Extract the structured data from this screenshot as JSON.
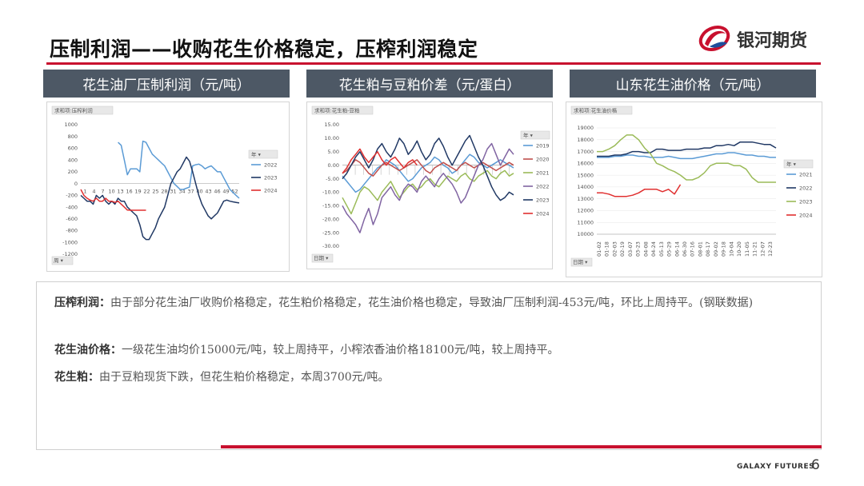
{
  "title": "压制利润——收购花生价格稳定，压榨利润稳定",
  "logo": {
    "name": "银河期货",
    "mark_color": "#c8102e"
  },
  "footer": {
    "brand": "GALAXY FUTURES",
    "page": "6"
  },
  "panels": [
    {
      "header": "花生油厂压制利润（元/吨）",
      "sheet_label": "求和项:压榨利润",
      "filter_label": "周",
      "legend_title": "年",
      "chart_data": {
        "type": "line",
        "x_ticks": [
          "1",
          "4",
          "7",
          "10",
          "13",
          "16",
          "19",
          "22",
          "25",
          "28",
          "31",
          "34",
          "37",
          "40",
          "43",
          "46",
          "49",
          "52"
        ],
        "y_ticks": [
          1000,
          800,
          600,
          400,
          200,
          0,
          -200,
          -400,
          -600,
          -800,
          -1000,
          -1200
        ],
        "ylim": [
          -1200,
          1000
        ],
        "series": [
          {
            "name": "2022",
            "color": "#5b9bd5",
            "values": [
              null,
              null,
              null,
              null,
              null,
              null,
              null,
              null,
              null,
              null,
              null,
              null,
              700,
              650,
              400,
              150,
              250,
              250,
              250,
              200,
              720,
              700,
              600,
              500,
              450,
              400,
              350,
              300,
              200,
              100,
              0,
              -50,
              -100,
              -100,
              -80,
              -60,
              300,
              320,
              330,
              300,
              250,
              280,
              300,
              250,
              200,
              200,
              100,
              0,
              -100,
              -150,
              -200,
              -250
            ]
          },
          {
            "name": "2023",
            "color": "#203864",
            "values": [
              -200,
              -250,
              -300,
              -300,
              -350,
              -200,
              -250,
              -200,
              -300,
              -350,
              -300,
              -350,
              -250,
              -300,
              -300,
              -400,
              -450,
              -500,
              -550,
              -700,
              -900,
              -950,
              -950,
              -850,
              -750,
              -600,
              -500,
              -400,
              -200,
              0,
              100,
              200,
              250,
              350,
              450,
              380,
              200,
              0,
              -200,
              -350,
              -450,
              -550,
              -600,
              -550,
              -500,
              -400,
              -300,
              -280,
              -300,
              -310,
              -320,
              -330
            ]
          },
          {
            "name": "2024",
            "color": "#e03030",
            "values": [
              -100,
              -200,
              -250,
              -280,
              -300,
              -250,
              -300,
              -300,
              -250,
              -300,
              -300,
              -320,
              -300,
              -350,
              -400,
              -450,
              -453,
              -453,
              -453,
              -453,
              -453,
              -453,
              null,
              null,
              null,
              null,
              null,
              null,
              null,
              null,
              null,
              null,
              null,
              null,
              null,
              null,
              null,
              null,
              null,
              null,
              null,
              null,
              null,
              null,
              null,
              null,
              null,
              null,
              null,
              null,
              null,
              null
            ]
          }
        ]
      }
    },
    {
      "header": "花生粕与豆粕价差（元/蛋白）",
      "sheet_label": "求和项:花生粕-豆粕",
      "filter_label": "日期",
      "legend_title": "年",
      "chart_data": {
        "type": "line",
        "y_ticks": [
          "15.00",
          "10.00",
          "5.00",
          "0.00",
          "-5.00",
          "-10.00",
          "-15.00",
          "-20.00",
          "-25.00",
          "-30.00"
        ],
        "ylim": [
          -30,
          15
        ],
        "series": [
          {
            "name": "2019",
            "color": "#5b9bd5",
            "values": [
              -4,
              -6,
              -8,
              -10,
              -9,
              -7,
              -5,
              -3,
              -1,
              0,
              2,
              1,
              0,
              -2,
              -4,
              -6,
              -5,
              -3,
              -1,
              0,
              1,
              3,
              2,
              0,
              -1,
              -3,
              -2,
              0,
              2,
              4,
              3,
              1,
              0,
              -1,
              0,
              1,
              2,
              1,
              0,
              -1
            ]
          },
          {
            "name": "2020",
            "color": "#c0504d",
            "values": [
              -3,
              -2,
              0,
              2,
              1,
              -1,
              -3,
              -4,
              -2,
              0,
              1,
              0,
              -1,
              -2,
              -1,
              0,
              1,
              2,
              0,
              -2,
              -3,
              -1,
              0,
              1,
              0,
              -1,
              -2,
              0,
              1,
              0,
              -1,
              0,
              1,
              0,
              -1,
              -2,
              -1,
              0,
              1,
              0
            ]
          },
          {
            "name": "2021",
            "color": "#9bbb59",
            "values": [
              -12,
              -15,
              -18,
              -14,
              -10,
              -8,
              -9,
              -11,
              -13,
              -10,
              -8,
              -6,
              -9,
              -12,
              -10,
              -8,
              -7,
              -9,
              -8,
              -6,
              -5,
              -7,
              -8,
              -6,
              -4,
              -5,
              -6,
              -4,
              -3,
              -5,
              -6,
              -4,
              -3,
              -2,
              -4,
              -5,
              -3,
              -2,
              -4,
              -3
            ]
          },
          {
            "name": "2022",
            "color": "#8064a2",
            "values": [
              -15,
              -18,
              -20,
              -22,
              -25,
              -20,
              -16,
              -22,
              -18,
              -12,
              -10,
              -8,
              -11,
              -13,
              -9,
              -7,
              -8,
              -10,
              -6,
              -4,
              -6,
              -8,
              -5,
              -3,
              -5,
              -7,
              -10,
              -14,
              -12,
              -8,
              -4,
              0,
              2,
              6,
              8,
              4,
              0,
              3,
              6,
              4
            ]
          },
          {
            "name": "2023",
            "color": "#203864",
            "values": [
              -5,
              -3,
              0,
              3,
              5,
              2,
              -1,
              2,
              6,
              8,
              5,
              3,
              6,
              10,
              8,
              4,
              6,
              9,
              5,
              2,
              4,
              8,
              10,
              7,
              3,
              0,
              3,
              6,
              9,
              11,
              7,
              3,
              0,
              -4,
              -8,
              -11,
              -13,
              -12,
              -10,
              -11
            ]
          },
          {
            "name": "2024",
            "color": "#e03030",
            "values": [
              -3,
              -1,
              2,
              4,
              6,
              3,
              1,
              3,
              5,
              2,
              0,
              2,
              3,
              1,
              -1,
              1,
              2,
              0,
              null,
              null,
              null,
              null,
              null,
              null,
              null,
              null,
              null,
              null,
              null,
              null,
              null,
              null,
              null,
              null,
              null,
              null,
              null,
              null,
              null,
              null
            ]
          }
        ]
      }
    },
    {
      "header": "山东花生油价格（元/吨）",
      "sheet_label": "求和项:花生油价格",
      "filter_label": "日期",
      "legend_title": "年",
      "chart_data": {
        "type": "line",
        "x_ticks": [
          "01-02",
          "01-18",
          "02-03",
          "02-19",
          "03-07",
          "03-23",
          "04-08",
          "04-24",
          "05-13",
          "05-29",
          "06-14",
          "06-30",
          "07-16",
          "08-01",
          "08-17",
          "09-02",
          "09-18",
          "10-04",
          "10-20",
          "11-05",
          "11-21",
          "12-07",
          "12-23"
        ],
        "y_ticks": [
          19000,
          18000,
          17000,
          16000,
          15000,
          14000,
          13000,
          12000,
          11000,
          10000
        ],
        "ylim": [
          10000,
          19000
        ],
        "series": [
          {
            "name": "2021",
            "color": "#5b9bd5",
            "values": [
              16500,
              16500,
              16500,
              16600,
              16600,
              16700,
              16700,
              16600,
              16600,
              16500,
              16500,
              16500,
              16600,
              16500,
              16400,
              16400,
              16400,
              16500,
              16600,
              16700,
              16800,
              16800,
              16900,
              16900,
              16800,
              16700,
              16700,
              16600,
              16600,
              16500,
              16500
            ]
          },
          {
            "name": "2022",
            "color": "#203864",
            "values": [
              16600,
              16600,
              16600,
              16700,
              16700,
              16800,
              17000,
              17000,
              16900,
              16900,
              17200,
              17200,
              17100,
              17100,
              17100,
              17200,
              17200,
              17200,
              17300,
              17300,
              17500,
              17500,
              17600,
              17500,
              17800,
              17800,
              17800,
              17700,
              17600,
              17600,
              17300
            ]
          },
          {
            "name": "2023",
            "color": "#9bbb59",
            "values": [
              17000,
              17000,
              17200,
              17500,
              18000,
              18400,
              18400,
              18000,
              17300,
              16800,
              16000,
              15800,
              15500,
              15300,
              15000,
              14600,
              14600,
              14800,
              15200,
              15800,
              16000,
              16000,
              16000,
              15800,
              15800,
              15500,
              14800,
              14400,
              14400,
              14400,
              14400
            ]
          },
          {
            "name": "2024",
            "color": "#e03030",
            "values": [
              13500,
              13500,
              13400,
              13200,
              13200,
              13200,
              13300,
              13500,
              13800,
              13800,
              13800,
              13600,
              13800,
              13400,
              14200,
              null,
              null,
              null,
              null,
              null,
              null,
              null,
              null,
              null,
              null,
              null,
              null,
              null,
              null,
              null,
              null
            ]
          }
        ]
      }
    }
  ],
  "paragraphs": [
    {
      "label": "压榨利润：",
      "text": "由于部分花生油厂收购价格稳定，花生粕价格稳定，花生油价格也稳定，导致油厂压制利润-453元/吨，环比上周持平。(钢联数据)"
    },
    {
      "label": "花生油价格：",
      "text": "一级花生油均价15000元/吨，较上周持平，小榨浓香油价格18100元/吨，较上周持平。"
    },
    {
      "label": "花生粕：",
      "text": "由于豆粕现货下跌，但花生粕价格稳定，本周3700元/吨。"
    }
  ]
}
